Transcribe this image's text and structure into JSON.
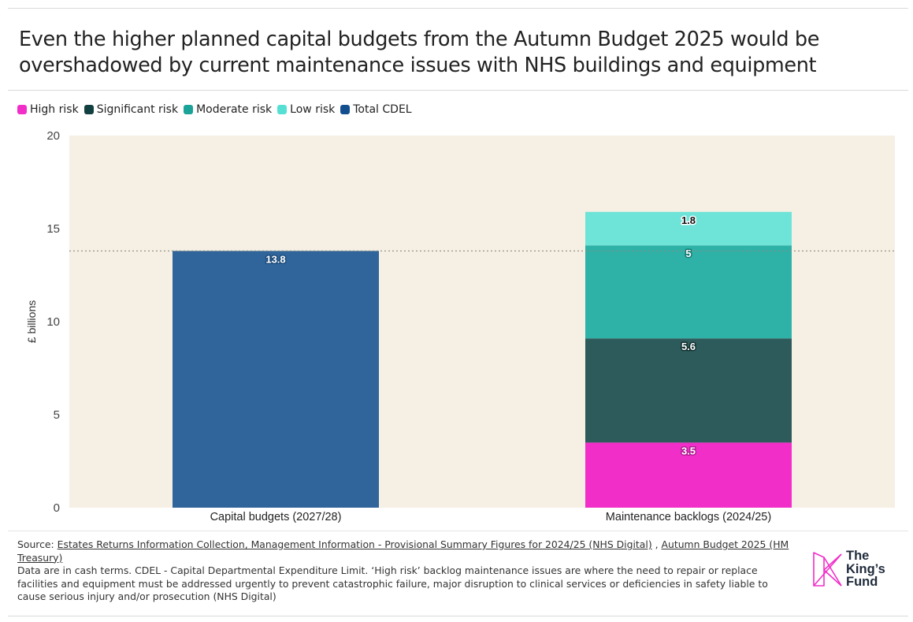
{
  "title": "Even the higher planned capital budgets from the Autumn Budget 2025 would be overshadowed by current maintenance issues with NHS buildings and equipment",
  "legend": [
    {
      "label": "High risk",
      "color": "#f22ec9"
    },
    {
      "label": "Significant risk",
      "color": "#123f3f"
    },
    {
      "label": "Moderate risk",
      "color": "#1ba39a"
    },
    {
      "label": "Low risk",
      "color": "#56e0d4"
    },
    {
      "label": "Total CDEL",
      "color": "#134f8f"
    }
  ],
  "chart_data": {
    "type": "bar",
    "stacked": true,
    "categories": [
      "Capital budgets (2027/28)",
      "Maintenance backlogs (2024/25)"
    ],
    "series": [
      {
        "name": "Total CDEL",
        "color": "#30659b",
        "values": [
          13.8,
          null
        ]
      },
      {
        "name": "High risk",
        "color": "#f22ec9",
        "values": [
          null,
          3.5
        ]
      },
      {
        "name": "Significant risk",
        "color": "#2d5b5c",
        "values": [
          null,
          5.6
        ]
      },
      {
        "name": "Moderate risk",
        "color": "#2eb2a8",
        "values": [
          null,
          5
        ]
      },
      {
        "name": "Low risk",
        "color": "#6ee3d8",
        "values": [
          null,
          1.8
        ]
      }
    ],
    "ylabel": "£ billions",
    "ylim": [
      0,
      20
    ],
    "yticks": [
      0,
      5,
      10,
      15,
      20
    ],
    "reference_line": {
      "value": 13.8,
      "style": "dotted"
    },
    "plot_background": "#f6efe4",
    "grid": false,
    "legend_position": "top-left"
  },
  "footer": {
    "source_label": "Source: ",
    "source_link_1": "Estates Returns Information Collection, Management Information - Provisional Summary Figures for 2024/25 (NHS Digital)",
    "source_sep": " , ",
    "source_link_2": "Autumn Budget 2025 (HM Treasury)",
    "note": "Data are in cash terms. CDEL - Capital Departmental Expenditure Limit. ‘High risk’ backlog maintenance issues are where the need to repair or replace facilities and equipment must be addressed urgently to prevent catastrophic failure, major disruption to clinical services or deficiencies in safety liable to cause serious injury and/or prosecution (NHS Digital)"
  },
  "logo": {
    "line1": "The",
    "line2": "King’s",
    "line3": "Fund",
    "color": "#f22ec9"
  }
}
